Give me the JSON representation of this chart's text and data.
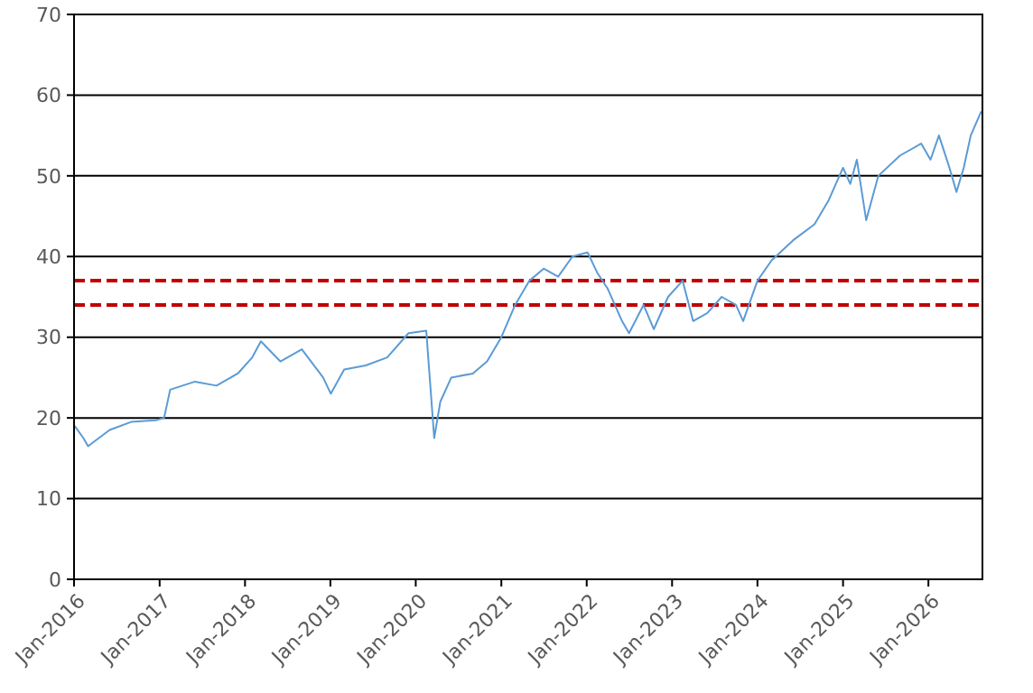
{
  "chart_data": {
    "type": "line",
    "x": [
      "2016-01-04",
      "2016-02-10",
      "2016-03-01",
      "2016-06-01",
      "2016-09-01",
      "2016-12-15",
      "2017-01-20",
      "2017-02-15",
      "2017-06-01",
      "2017-09-01",
      "2017-12-01",
      "2018-02-01",
      "2018-03-10",
      "2018-06-01",
      "2018-09-01",
      "2018-12-01",
      "2019-01-03",
      "2019-03-01",
      "2019-06-01",
      "2019-09-01",
      "2019-12-01",
      "2020-02-15",
      "2020-03-20",
      "2020-04-15",
      "2020-06-01",
      "2020-09-01",
      "2020-11-01",
      "2021-01-01",
      "2021-03-01",
      "2021-05-01",
      "2021-07-01",
      "2021-09-01",
      "2021-11-01",
      "2022-01-05",
      "2022-02-15",
      "2022-04-01",
      "2022-06-01",
      "2022-07-01",
      "2022-09-01",
      "2022-10-15",
      "2022-12-15",
      "2023-02-15",
      "2023-04-01",
      "2023-06-01",
      "2023-08-01",
      "2023-10-01",
      "2023-11-01",
      "2024-01-01",
      "2024-03-01",
      "2024-06-01",
      "2024-09-01",
      "2024-11-01",
      "2025-01-01",
      "2025-02-01",
      "2025-03-01",
      "2025-04-10",
      "2025-06-01",
      "2025-09-01",
      "2025-12-01",
      "2026-01-10",
      "2026-02-15",
      "2026-04-01",
      "2026-05-01",
      "2026-06-01",
      "2026-07-01",
      "2026-08-15"
    ],
    "series": [
      {
        "color": "#5b9bd5",
        "values": [
          19,
          17.5,
          16.5,
          18.5,
          19.5,
          19.7,
          20,
          23.5,
          24.5,
          24,
          25.5,
          27.5,
          29.5,
          27,
          28.5,
          25,
          23,
          26,
          26.5,
          27.5,
          30.5,
          30.8,
          17.5,
          22,
          25,
          25.5,
          27,
          30,
          34,
          37,
          38.5,
          37.5,
          40,
          40.5,
          38,
          36,
          32,
          30.5,
          34,
          31,
          35,
          37,
          32,
          33,
          35,
          34,
          32,
          37,
          39.5,
          42,
          44,
          47,
          51,
          49,
          52,
          44.5,
          50,
          52.5,
          54,
          52,
          55,
          51,
          48,
          51,
          55,
          58
        ]
      }
    ],
    "xlim": [
      "2016-01-01",
      "2026-08-20"
    ],
    "xticks": [
      {
        "value": "2016-01-01",
        "label": "Jan-2016"
      },
      {
        "value": "2017-01-01",
        "label": "Jan-2017"
      },
      {
        "value": "2018-01-01",
        "label": "Jan-2018"
      },
      {
        "value": "2019-01-01",
        "label": "Jan-2019"
      },
      {
        "value": "2020-01-01",
        "label": "Jan-2020"
      },
      {
        "value": "2021-01-01",
        "label": "Jan-2021"
      },
      {
        "value": "2022-01-01",
        "label": "Jan-2022"
      },
      {
        "value": "2023-01-01",
        "label": "Jan-2023"
      },
      {
        "value": "2024-01-01",
        "label": "Jan-2024"
      },
      {
        "value": "2025-01-01",
        "label": "Jan-2025"
      },
      {
        "value": "2026-01-01",
        "label": "Jan-2026"
      }
    ],
    "ylim": [
      0,
      70
    ],
    "yticks": [
      0,
      10,
      20,
      30,
      40,
      50,
      60,
      70
    ],
    "grid": "y",
    "marker": "none",
    "line_style": "solid",
    "ref_lines": [
      {
        "axis": "y",
        "value": 37,
        "color": "#c00000",
        "line_style": "dashed"
      },
      {
        "axis": "y",
        "value": 34,
        "color": "#c00000",
        "line_style": "dashed"
      }
    ]
  }
}
